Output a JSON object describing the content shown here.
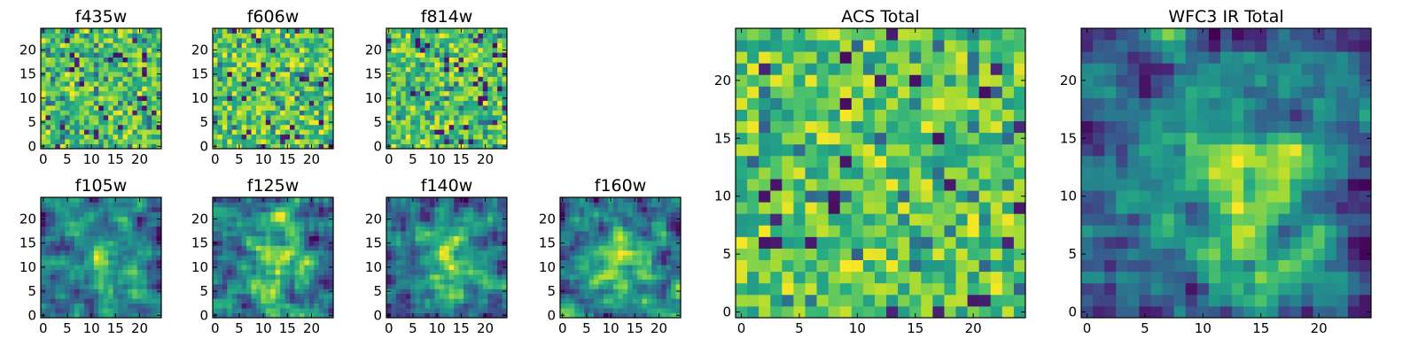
{
  "chart_data": [
    {
      "type": "heatmap",
      "title": "f435w",
      "grid_size": 25,
      "xlim": [
        0,
        24
      ],
      "ylim": [
        0,
        24
      ],
      "xticks": [
        0,
        5,
        10,
        15,
        20
      ],
      "yticks": [
        0,
        5,
        10,
        15,
        20
      ],
      "colormap": "viridis",
      "pattern": "noise",
      "seed": 11
    },
    {
      "type": "heatmap",
      "title": "f606w",
      "grid_size": 25,
      "xlim": [
        0,
        24
      ],
      "ylim": [
        0,
        24
      ],
      "xticks": [
        0,
        5,
        10,
        15,
        20
      ],
      "yticks": [
        0,
        5,
        10,
        15,
        20
      ],
      "colormap": "viridis",
      "pattern": "noise",
      "seed": 23
    },
    {
      "type": "heatmap",
      "title": "f814w",
      "grid_size": 25,
      "xlim": [
        0,
        24
      ],
      "ylim": [
        0,
        24
      ],
      "xticks": [
        0,
        5,
        10,
        15,
        20
      ],
      "yticks": [
        0,
        5,
        10,
        15,
        20
      ],
      "colormap": "viridis",
      "pattern": "noise",
      "seed": 37
    },
    {
      "type": "heatmap",
      "title": "f105w",
      "grid_size": 25,
      "xlim": [
        0,
        24
      ],
      "ylim": [
        0,
        24
      ],
      "xticks": [
        0,
        5,
        10,
        15,
        20
      ],
      "yticks": [
        0,
        5,
        10,
        15,
        20
      ],
      "colormap": "viridis",
      "pattern": "blob",
      "seed": 41
    },
    {
      "type": "heatmap",
      "title": "f125w",
      "grid_size": 25,
      "xlim": [
        0,
        24
      ],
      "ylim": [
        0,
        24
      ],
      "xticks": [
        0,
        5,
        10,
        15,
        20
      ],
      "yticks": [
        0,
        5,
        10,
        15,
        20
      ],
      "colormap": "viridis",
      "pattern": "blob",
      "seed": 53
    },
    {
      "type": "heatmap",
      "title": "f140w",
      "grid_size": 25,
      "xlim": [
        0,
        24
      ],
      "ylim": [
        0,
        24
      ],
      "xticks": [
        0,
        5,
        10,
        15,
        20
      ],
      "yticks": [
        0,
        5,
        10,
        15,
        20
      ],
      "colormap": "viridis",
      "pattern": "blob",
      "seed": 67
    },
    {
      "type": "heatmap",
      "title": "f160w",
      "grid_size": 25,
      "xlim": [
        0,
        24
      ],
      "ylim": [
        0,
        24
      ],
      "xticks": [
        0,
        5,
        10,
        15,
        20
      ],
      "yticks": [
        0,
        5,
        10,
        15,
        20
      ],
      "colormap": "viridis",
      "pattern": "blob",
      "seed": 79
    },
    {
      "type": "heatmap",
      "title": "ACS Total",
      "grid_size": 25,
      "xlim": [
        0,
        24
      ],
      "ylim": [
        0,
        24
      ],
      "xticks": [
        0,
        5,
        10,
        15,
        20
      ],
      "yticks": [
        0,
        5,
        10,
        15,
        20
      ],
      "colormap": "viridis",
      "pattern": "noise",
      "seed": 97
    },
    {
      "type": "heatmap",
      "title": "WFC3 IR Total",
      "grid_size": 25,
      "xlim": [
        0,
        24
      ],
      "ylim": [
        0,
        24
      ],
      "xticks": [
        0,
        5,
        10,
        15,
        20
      ],
      "yticks": [
        0,
        5,
        10,
        15,
        20
      ],
      "colormap": "viridis",
      "pattern": "blob",
      "seed": 113
    }
  ]
}
